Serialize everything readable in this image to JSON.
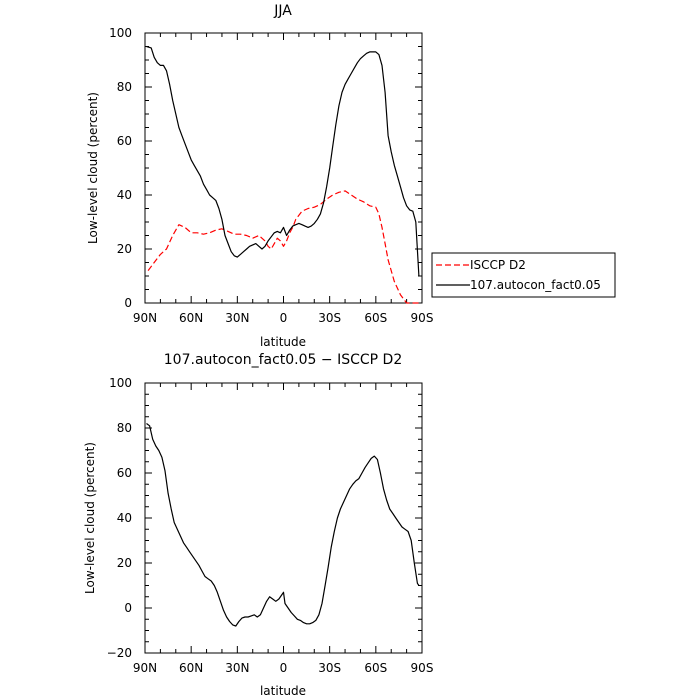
{
  "chart_data": [
    {
      "type": "line",
      "title": "JJA",
      "xlabel": "latitude",
      "ylabel": "Low-level cloud (percent)",
      "xlim": [
        90,
        -90
      ],
      "ylim": [
        0,
        100
      ],
      "xticks": [
        90,
        60,
        30,
        0,
        -30,
        -60,
        -90
      ],
      "xtick_labels": [
        "90N",
        "60N",
        "30N",
        "0",
        "30S",
        "60S",
        "90S"
      ],
      "yticks": [
        0,
        20,
        40,
        60,
        80,
        100
      ],
      "ytick_labels": [
        "0",
        "20",
        "40",
        "60",
        "80",
        "100"
      ],
      "legend_position": "right",
      "series": [
        {
          "name": "ISCCP D2",
          "color": "#ff0000",
          "dash": "dashed",
          "x": [
            88,
            84,
            80,
            76,
            72,
            68,
            64,
            60,
            56,
            52,
            48,
            44,
            40,
            36,
            32,
            28,
            24,
            20,
            16,
            12,
            10,
            8,
            6,
            4,
            2,
            0,
            -2,
            -4,
            -6,
            -8,
            -12,
            -16,
            -20,
            -24,
            -28,
            -32,
            -36,
            -40,
            -44,
            -48,
            -52,
            -56,
            -60,
            -62,
            -64,
            -66,
            -68,
            -72,
            -76,
            -80,
            -84,
            -88
          ],
          "y": [
            12,
            15,
            18,
            20,
            25,
            29,
            28,
            26,
            26,
            25.5,
            26,
            27,
            27.5,
            26.5,
            25.5,
            25.5,
            25,
            24,
            25,
            23,
            21,
            20,
            22,
            24,
            23,
            21,
            23,
            26,
            28,
            31,
            34,
            35,
            35.5,
            36.5,
            38.5,
            40,
            41,
            41.5,
            40,
            38.5,
            37.5,
            36,
            35.5,
            33,
            28,
            22,
            16,
            8,
            3,
            0,
            0,
            0
          ]
        },
        {
          "name": "107.autocon_fact0.05",
          "color": "#000000",
          "dash": "solid",
          "x": [
            89,
            86,
            84,
            82,
            80,
            78,
            76,
            74,
            72,
            70,
            68,
            66,
            64,
            62,
            60,
            58,
            56,
            54,
            52,
            50,
            48,
            46,
            44,
            42,
            40,
            38,
            36,
            34,
            32,
            30,
            28,
            26,
            24,
            22,
            20,
            18,
            16,
            14,
            12,
            10,
            8,
            6,
            4,
            2,
            0,
            -2,
            -4,
            -6,
            -8,
            -10,
            -12,
            -14,
            -16,
            -18,
            -20,
            -22,
            -24,
            -26,
            -28,
            -30,
            -32,
            -34,
            -36,
            -38,
            -40,
            -42,
            -44,
            -46,
            -48,
            -50,
            -52,
            -54,
            -56,
            -58,
            -60,
            -62,
            -64,
            -66,
            -68,
            -70,
            -72,
            -74,
            -76,
            -78,
            -80,
            -82,
            -84,
            -86,
            -88
          ],
          "y": [
            95,
            94.5,
            91,
            89,
            88,
            88,
            86,
            81,
            75,
            70,
            65,
            62,
            59,
            56,
            53,
            51,
            49,
            47,
            44,
            42,
            40,
            39,
            38,
            35,
            31,
            25,
            22,
            19,
            17.5,
            17,
            18,
            19,
            20,
            21,
            21.5,
            22,
            21,
            20,
            21,
            23,
            24.5,
            26,
            26.5,
            26,
            28,
            25,
            27,
            28.5,
            29,
            29.5,
            29,
            28.5,
            28,
            28.5,
            29.5,
            31,
            33,
            37,
            43,
            50,
            58,
            66,
            73,
            78,
            81,
            83,
            85,
            87,
            89,
            90.5,
            91.5,
            92.5,
            93,
            93,
            93,
            92,
            88,
            78,
            62,
            56,
            51,
            47,
            43,
            39,
            36,
            34.5,
            34,
            30,
            10
          ]
        }
      ]
    },
    {
      "type": "line",
      "title": "107.autocon_fact0.05 − ISCCP D2",
      "xlabel": "latitude",
      "ylabel": "Low-level cloud (percent)",
      "xlim": [
        90,
        -90
      ],
      "ylim": [
        -20,
        100
      ],
      "xticks": [
        90,
        60,
        30,
        0,
        -30,
        -60,
        -90
      ],
      "xtick_labels": [
        "90N",
        "60N",
        "30N",
        "0",
        "30S",
        "60S",
        "90S"
      ],
      "yticks": [
        -20,
        0,
        20,
        40,
        60,
        80,
        100
      ],
      "ytick_labels": [
        "−20",
        "0",
        "20",
        "40",
        "60",
        "80",
        "100"
      ],
      "series": [
        {
          "color": "#000000",
          "dash": "solid",
          "x": [
            89,
            87,
            85,
            83,
            81,
            79,
            77,
            75,
            73,
            71,
            69,
            67,
            65,
            63,
            61,
            59,
            57,
            55,
            53,
            51,
            49,
            47,
            45,
            43,
            41,
            39,
            37,
            35,
            33,
            31,
            29,
            27,
            25,
            23,
            21,
            19,
            17,
            15,
            13,
            11,
            9,
            7,
            5,
            3,
            1,
            0,
            -1,
            -3,
            -5,
            -7,
            -9,
            -11,
            -13,
            -15,
            -17,
            -19,
            -21,
            -23,
            -25,
            -27,
            -29,
            -31,
            -33,
            -35,
            -37,
            -39,
            -41,
            -43,
            -45,
            -47,
            -49,
            -51,
            -53,
            -55,
            -57,
            -59,
            -61,
            -63,
            -65,
            -67,
            -69,
            -71,
            -73,
            -75,
            -77,
            -79,
            -81,
            -83,
            -85,
            -87,
            -88
          ],
          "y": [
            82,
            81,
            75,
            72,
            70,
            67,
            61,
            51,
            44,
            38,
            35,
            32,
            29,
            27,
            25,
            23,
            21,
            19,
            16.5,
            14,
            13,
            12,
            10,
            7,
            3,
            -1,
            -4,
            -6,
            -7.5,
            -8,
            -6,
            -4.5,
            -4,
            -4,
            -3.5,
            -3,
            -4,
            -3,
            0,
            3,
            5,
            4,
            3,
            4,
            6,
            7,
            2,
            0,
            -2,
            -3.5,
            -5,
            -5.5,
            -6.5,
            -7,
            -7,
            -6.5,
            -5.5,
            -3,
            2,
            10,
            18,
            27,
            34,
            40,
            44,
            47,
            50,
            53,
            55,
            56.5,
            57.5,
            60,
            62.5,
            64.5,
            66.5,
            67.5,
            66,
            60,
            53,
            48,
            44,
            42,
            40,
            38,
            36,
            35,
            34,
            30,
            20,
            11,
            10
          ]
        }
      ]
    }
  ],
  "legend": {
    "entries": [
      {
        "label": "ISCCP D2",
        "color": "#ff0000",
        "dash": "dashed"
      },
      {
        "label": "107.autocon_fact0.05",
        "color": "#000000",
        "dash": "solid"
      }
    ]
  }
}
